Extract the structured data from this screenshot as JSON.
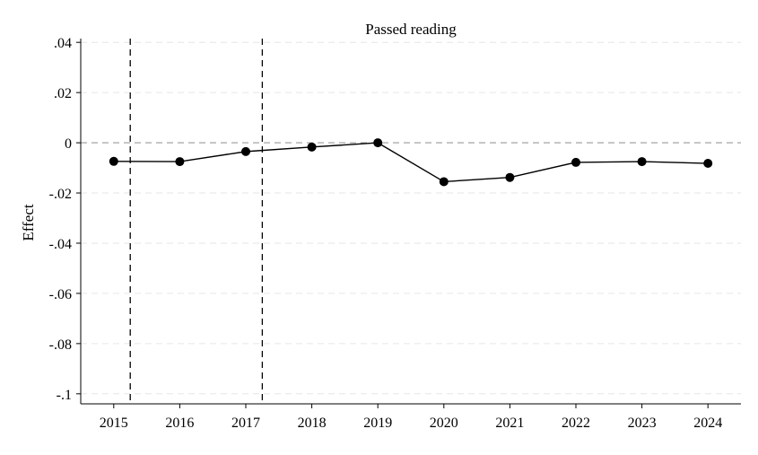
{
  "chart_data": {
    "type": "line",
    "title": "Passed reading",
    "xlabel": "",
    "ylabel": "Effect",
    "x": [
      2015,
      2016,
      2017,
      2018,
      2019,
      2020,
      2021,
      2022,
      2023,
      2024
    ],
    "x_tick_labels": [
      "2015",
      "2016",
      "2017",
      "2018",
      "2019",
      "2020",
      "2021",
      "2022",
      "2023",
      "2024"
    ],
    "y_ticks": [
      0.04,
      0.02,
      0,
      -0.02,
      -0.04,
      -0.06,
      -0.08,
      -0.1
    ],
    "y_tick_labels": [
      ".04",
      ".02",
      "0",
      "-.02",
      "-.04",
      "-.06",
      "-.08",
      "-.1"
    ],
    "xlim": [
      2014.5,
      2024.5
    ],
    "ylim": [
      -0.104,
      0.0415
    ],
    "series": [
      {
        "values": [
          -0.0074,
          -0.0075,
          -0.0035,
          -0.0017,
          0.0,
          -0.0155,
          -0.0138,
          -0.0078,
          -0.0075,
          -0.0082
        ]
      }
    ],
    "reference_lines": {
      "horizontal_y": 0,
      "vertical_x": [
        2015.25,
        2017.25
      ]
    },
    "grid": true,
    "legend": "none",
    "colors": {
      "line": "#000000",
      "grid": "#e6e6e6",
      "zero_line": "#9a9a9a"
    }
  }
}
